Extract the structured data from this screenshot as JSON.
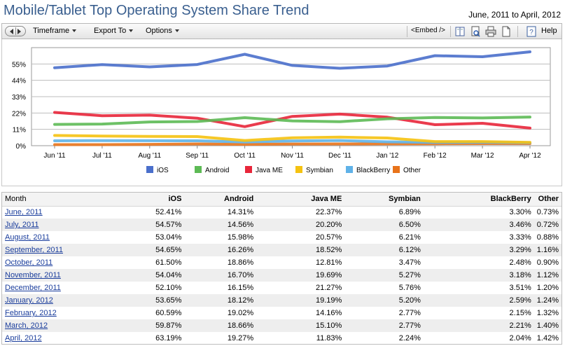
{
  "header": {
    "title": "Mobile/Tablet Top Operating System Share Trend",
    "date_range": "June, 2011 to April, 2012"
  },
  "toolbar": {
    "timeframe": "Timeframe",
    "export_to": "Export To",
    "options": "Options",
    "embed": "<Embed />",
    "help": "Help"
  },
  "colors": {
    "iOS": "#4a6fcb",
    "Android": "#5dba55",
    "Java ME": "#e8263a",
    "Symbian": "#f5c211",
    "BlackBerry": "#5fb2e8",
    "Other": "#e8731a"
  },
  "chart_data": {
    "type": "line",
    "categories": [
      "Jun '11",
      "Jul '11",
      "Aug '11",
      "Sep '11",
      "Oct '11",
      "Nov '11",
      "Dec '11",
      "Jan '12",
      "Feb '12",
      "Mar '12",
      "Apr '12"
    ],
    "y_ticks": [
      "0%",
      "11%",
      "22%",
      "33%",
      "44%",
      "55%"
    ],
    "ylim": [
      0,
      66
    ],
    "grid": true,
    "legend_placement": "bottom",
    "series": [
      {
        "name": "iOS",
        "values": [
          52.41,
          54.57,
          53.04,
          54.65,
          61.5,
          54.04,
          52.1,
          53.65,
          60.59,
          59.87,
          63.19
        ]
      },
      {
        "name": "Android",
        "values": [
          14.31,
          14.56,
          15.98,
          16.26,
          18.86,
          16.7,
          16.15,
          18.12,
          19.02,
          18.66,
          19.27
        ]
      },
      {
        "name": "Java ME",
        "values": [
          22.37,
          20.2,
          20.57,
          18.52,
          12.81,
          19.69,
          21.27,
          19.19,
          14.16,
          15.1,
          11.83
        ]
      },
      {
        "name": "Symbian",
        "values": [
          6.89,
          6.5,
          6.21,
          6.12,
          3.47,
          5.27,
          5.76,
          5.2,
          2.77,
          2.77,
          2.24
        ]
      },
      {
        "name": "BlackBerry",
        "values": [
          3.3,
          3.46,
          3.33,
          3.29,
          2.48,
          3.18,
          3.51,
          2.59,
          2.15,
          2.21,
          2.04
        ]
      },
      {
        "name": "Other",
        "values": [
          0.73,
          0.72,
          0.88,
          1.16,
          0.9,
          1.12,
          1.2,
          1.24,
          1.32,
          1.4,
          1.42
        ]
      }
    ]
  },
  "table": {
    "headers": [
      "Month",
      "iOS",
      "Android",
      "Java ME",
      "Symbian",
      "BlackBerry",
      "Other"
    ],
    "rows": [
      [
        "June, 2011",
        "52.41%",
        "14.31%",
        "22.37%",
        "6.89%",
        "3.30%",
        "0.73%"
      ],
      [
        "July, 2011",
        "54.57%",
        "14.56%",
        "20.20%",
        "6.50%",
        "3.46%",
        "0.72%"
      ],
      [
        "August, 2011",
        "53.04%",
        "15.98%",
        "20.57%",
        "6.21%",
        "3.33%",
        "0.88%"
      ],
      [
        "September, 2011",
        "54.65%",
        "16.26%",
        "18.52%",
        "6.12%",
        "3.29%",
        "1.16%"
      ],
      [
        "October, 2011",
        "61.50%",
        "18.86%",
        "12.81%",
        "3.47%",
        "2.48%",
        "0.90%"
      ],
      [
        "November, 2011",
        "54.04%",
        "16.70%",
        "19.69%",
        "5.27%",
        "3.18%",
        "1.12%"
      ],
      [
        "December, 2011",
        "52.10%",
        "16.15%",
        "21.27%",
        "5.76%",
        "3.51%",
        "1.20%"
      ],
      [
        "January, 2012",
        "53.65%",
        "18.12%",
        "19.19%",
        "5.20%",
        "2.59%",
        "1.24%"
      ],
      [
        "February, 2012",
        "60.59%",
        "19.02%",
        "14.16%",
        "2.77%",
        "2.15%",
        "1.32%"
      ],
      [
        "March, 2012",
        "59.87%",
        "18.66%",
        "15.10%",
        "2.77%",
        "2.21%",
        "1.40%"
      ],
      [
        "April, 2012",
        "63.19%",
        "19.27%",
        "11.83%",
        "2.24%",
        "2.04%",
        "1.42%"
      ]
    ]
  }
}
